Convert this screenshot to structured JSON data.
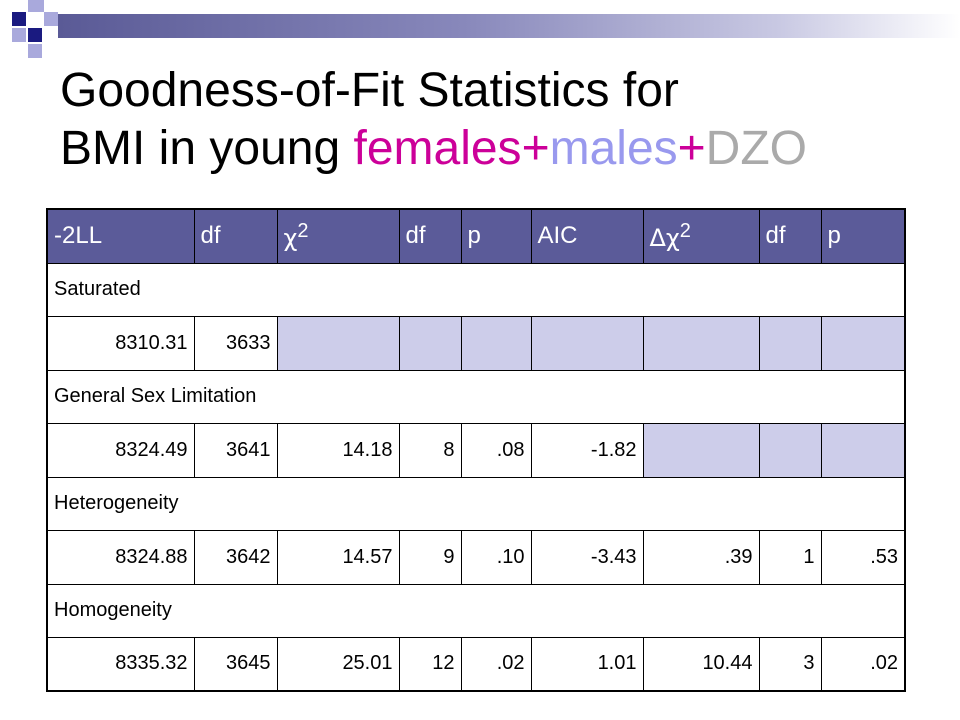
{
  "title": {
    "line1": "Goodness-of-Fit Statistics for",
    "line2_prefix": "BMI in young ",
    "word_females": "females",
    "plus1": "+",
    "word_males": "males",
    "plus2": "+",
    "word_dzo": "DZO"
  },
  "colors": {
    "header_bg": "#5b5b99",
    "empty_cell": "#cdcdea",
    "females": "#cc0099",
    "males": "#9999ee",
    "dzo": "#aaaaaa"
  },
  "table": {
    "headers": [
      "-2LL",
      "df",
      "c2",
      "df",
      "p",
      "AIC",
      "Dc2",
      "df",
      "p"
    ],
    "header_symbols": {
      "chi": "χ",
      "sup2": "2",
      "delta": "Δ"
    },
    "sections": [
      {
        "label": "Saturated",
        "values": [
          "8310.31",
          "3633",
          "",
          "",
          "",
          "",
          "",
          "",
          ""
        ]
      },
      {
        "label": "General Sex Limitation",
        "values": [
          "8324.49",
          "3641",
          "14.18",
          "8",
          ".08",
          "-1.82",
          "",
          "",
          ""
        ]
      },
      {
        "label": "Heterogeneity",
        "values": [
          "8324.88",
          "3642",
          "14.57",
          "9",
          ".10",
          "-3.43",
          ".39",
          "1",
          ".53"
        ]
      },
      {
        "label": "Homogeneity",
        "values": [
          "8335.32",
          "3645",
          "25.01",
          "12",
          ".02",
          "1.01",
          "10.44",
          "3",
          ".02"
        ]
      }
    ]
  }
}
